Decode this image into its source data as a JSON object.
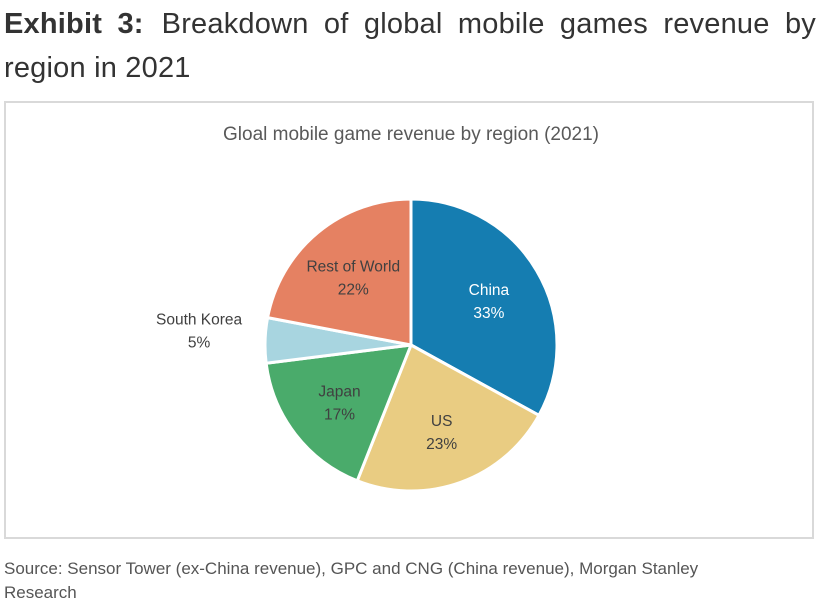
{
  "exhibit": {
    "label": "Exhibit 3:",
    "title": "Breakdown of global mobile games revenue by region in 2021"
  },
  "source": "Source: Sensor Tower (ex-China revenue), GPC and CNG (China revenue), Morgan Stanley Research",
  "chart_data": {
    "type": "pie",
    "title": "Gloal mobile game revenue by region (2021)",
    "unit": "%",
    "categories": [
      "China",
      "US",
      "Japan",
      "South Korea",
      "Rest of World"
    ],
    "values": [
      33,
      23,
      17,
      5,
      22
    ],
    "value_labels": [
      "33%",
      "23%",
      "17%",
      "5%",
      "22%"
    ],
    "colors": [
      "#157db1",
      "#e9cc82",
      "#4aab6b",
      "#a8d5e0",
      "#e58162"
    ],
    "label_colors": [
      "#ffffff",
      "#404040",
      "#404040",
      "#404040",
      "#404040"
    ],
    "label_outside": [
      false,
      false,
      false,
      true,
      false
    ],
    "start_angle_deg": 0,
    "direction": "clockwise",
    "legend": "none"
  }
}
